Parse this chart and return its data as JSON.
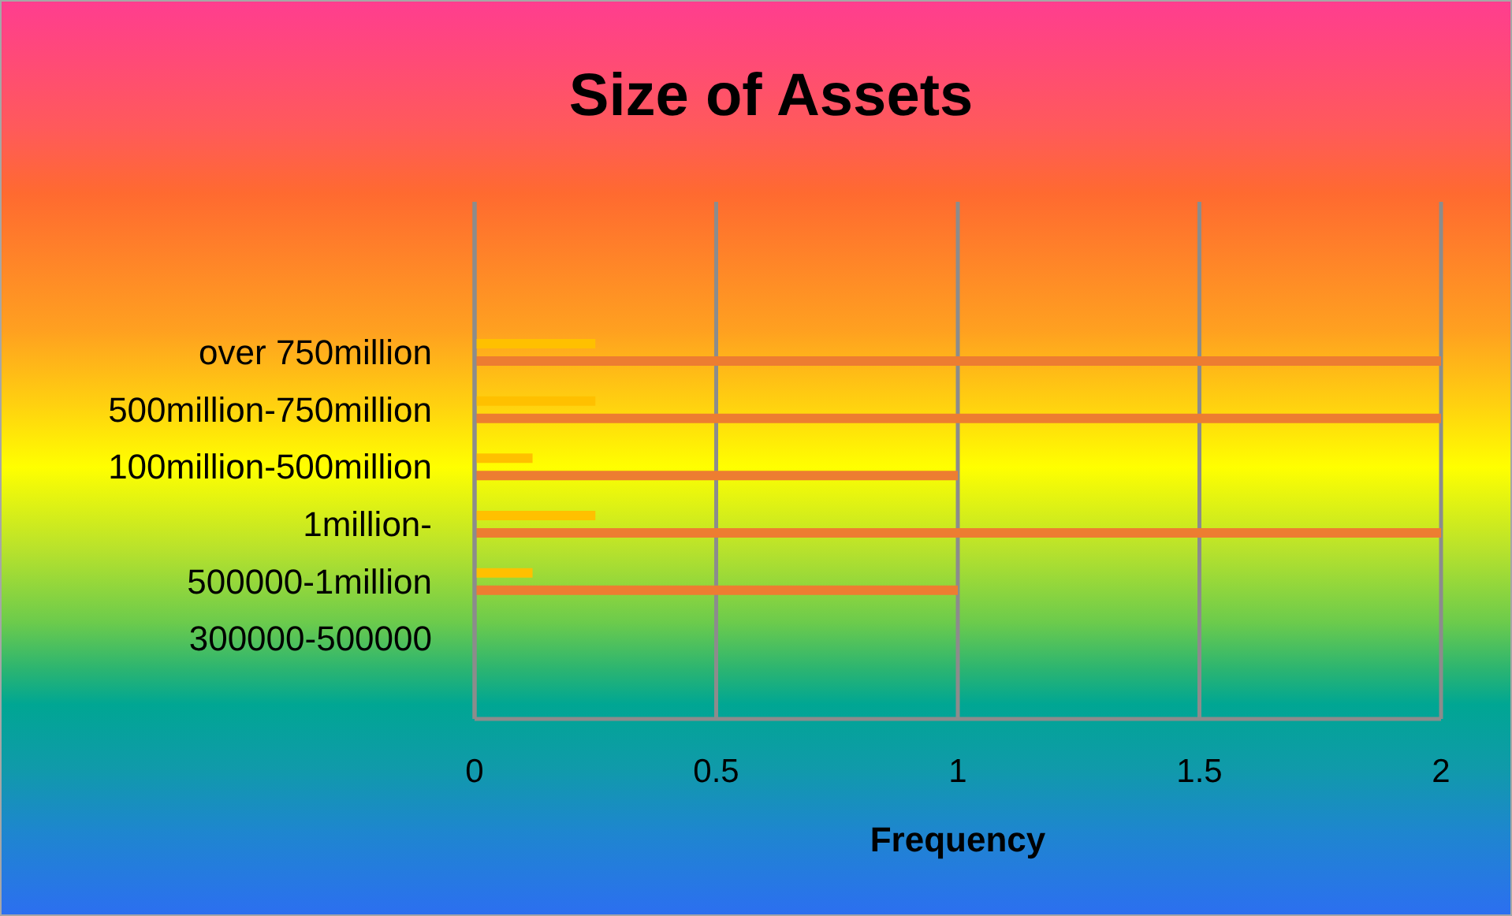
{
  "chart_data": {
    "type": "bar",
    "orientation": "horizontal",
    "title": "Size of Assets",
    "xlabel": "Frequency",
    "categories": [
      "over 750million",
      "500million-750million",
      "100million-500million",
      "1million-",
      "500000-1million",
      "300000-500000"
    ],
    "series": [
      {
        "color": "#ffc000",
        "values": [
          0.25,
          0.25,
          0.12,
          0.25,
          0.12,
          0
        ]
      },
      {
        "color": "#ed7d31",
        "values": [
          2,
          2,
          1,
          2,
          1,
          0
        ]
      }
    ],
    "xlim": [
      0,
      2
    ],
    "xticks": [
      0,
      0.5,
      1,
      1.5,
      2
    ],
    "grid": "x",
    "legend": false
  }
}
